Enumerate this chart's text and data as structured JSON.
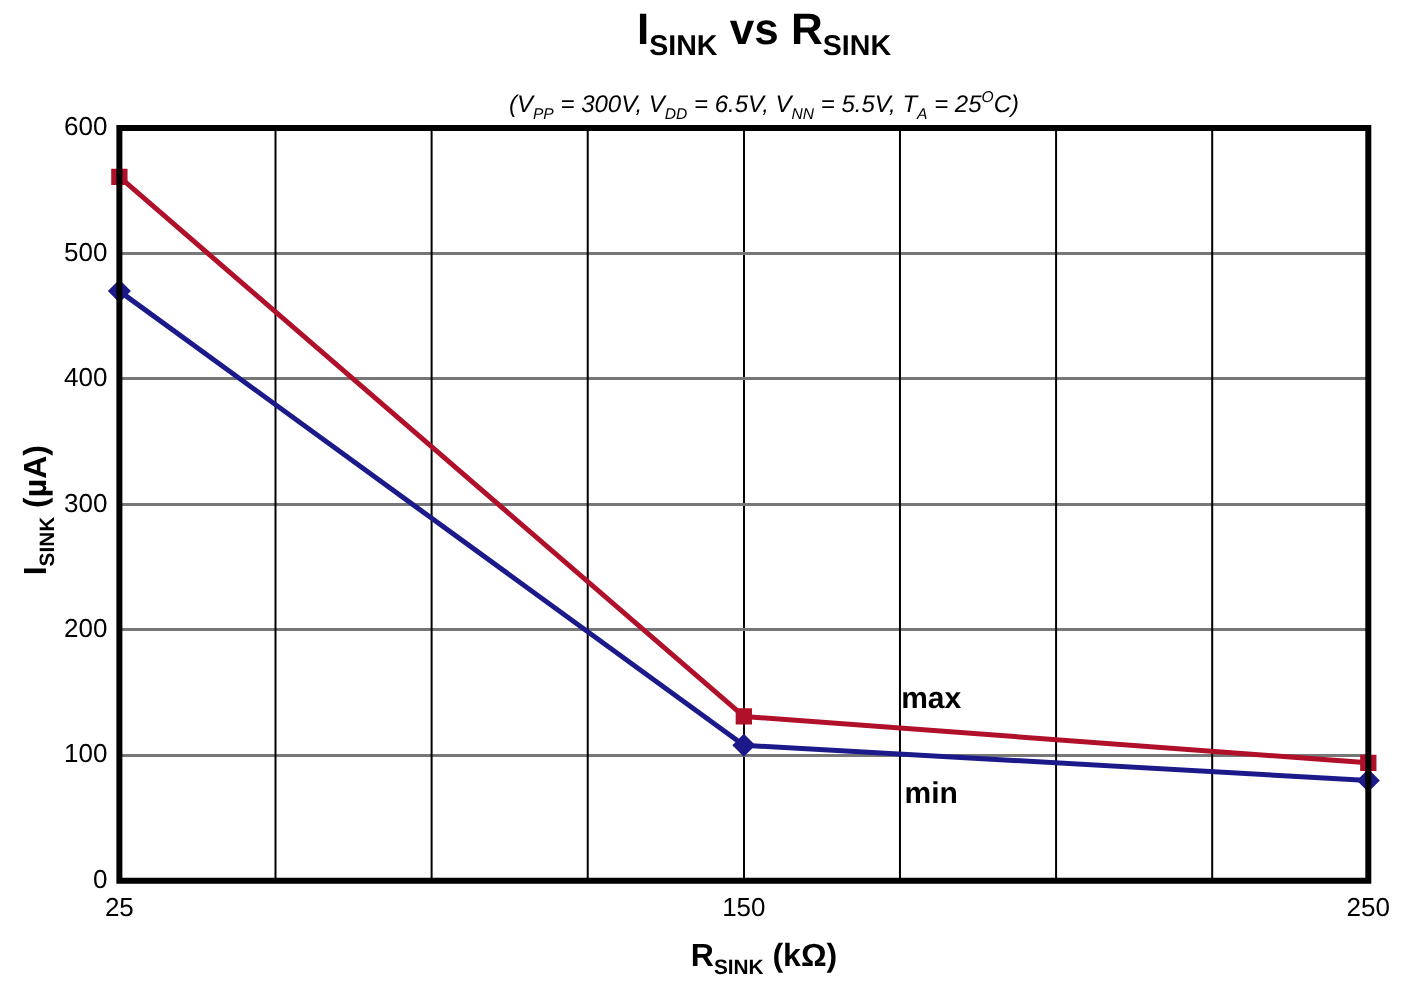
{
  "chart_data": {
    "type": "line",
    "title": "I$_{SINK}$ vs R$_{SINK}$",
    "subtitle": "(V$_{PP}$ = 300V, V$_{DD}$ = 6.5V, V$_{NN}$ = 5.5V, T$_{A}$ = 25$^{O}$C)",
    "xlabel": "R$_{SINK}$ (kΩ)",
    "ylabel": "I$_{SINK}$ (µA)",
    "categories": [
      "25",
      "150",
      "250"
    ],
    "series": [
      {
        "name": "max",
        "color": "#b0102a",
        "marker": "square",
        "values": [
          561,
          131,
          94
        ]
      },
      {
        "name": "min",
        "color": "#1c1a8a",
        "marker": "diamond",
        "values": [
          470,
          108,
          80
        ]
      }
    ],
    "ylim": [
      0,
      600
    ],
    "yticks": [
      0,
      100,
      200,
      300,
      400,
      500,
      600
    ],
    "grid": true,
    "legend": false
  }
}
